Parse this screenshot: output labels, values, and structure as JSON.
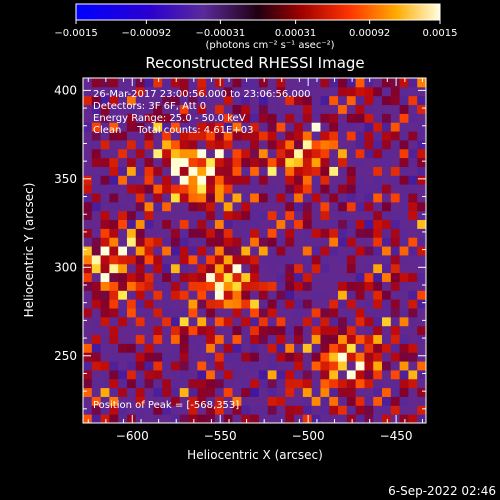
{
  "chart_data": {
    "type": "heatmap",
    "title": "Reconstructed RHESSI Image",
    "xlabel": "Heliocentric X (arcsec)",
    "ylabel": "Heliocentric Y (arcsec)",
    "xlim": [
      -628,
      -433
    ],
    "ylim": [
      212,
      407
    ],
    "x_ticks": [
      -600,
      -550,
      -500,
      -450
    ],
    "y_ticks": [
      250,
      300,
      350,
      400
    ],
    "colorbar": {
      "range": [
        -0.0015,
        0.0015
      ],
      "tick_values": [
        -0.0015,
        -0.00092,
        -0.00031,
        0.00031,
        0.00092,
        0.0015
      ],
      "tick_labels": [
        "−0.0015",
        "−0.00092",
        "−0.00031",
        "0.00031",
        "0.00092",
        "0.0015"
      ],
      "units": "(photons cm⁻² s⁻¹ asec⁻²)"
    },
    "colors": [
      "#0000ff",
      "#3a00b0",
      "#5b1f95",
      "#6a2aa0",
      "#8a0a20",
      "#d01010",
      "#ff4400",
      "#ff9900",
      "#ffdd33",
      "#ffffcc"
    ],
    "bright_regions": [
      {
        "x": -568,
        "y": 353,
        "value": 0.0015
      },
      {
        "x": -548,
        "y": 288,
        "value": 0.0013
      },
      {
        "x": -615,
        "y": 300,
        "value": 0.0011
      },
      {
        "x": -480,
        "y": 245,
        "value": 0.0011
      },
      {
        "x": -505,
        "y": 360,
        "value": 0.0009
      }
    ],
    "annotations": {
      "time_range": "26-Mar-2017 23:00:56.000 to 23:06:56.000",
      "detectors": "Detectors: 3F 6F, Att 0",
      "energy": "Energy Range: 25.0 - 50.0 keV",
      "clean": "Clean     Total counts: 4.61E+03",
      "peak": "Position of Peak = [-568,353]"
    },
    "footer_date": "6-Sep-2022 02:46"
  }
}
